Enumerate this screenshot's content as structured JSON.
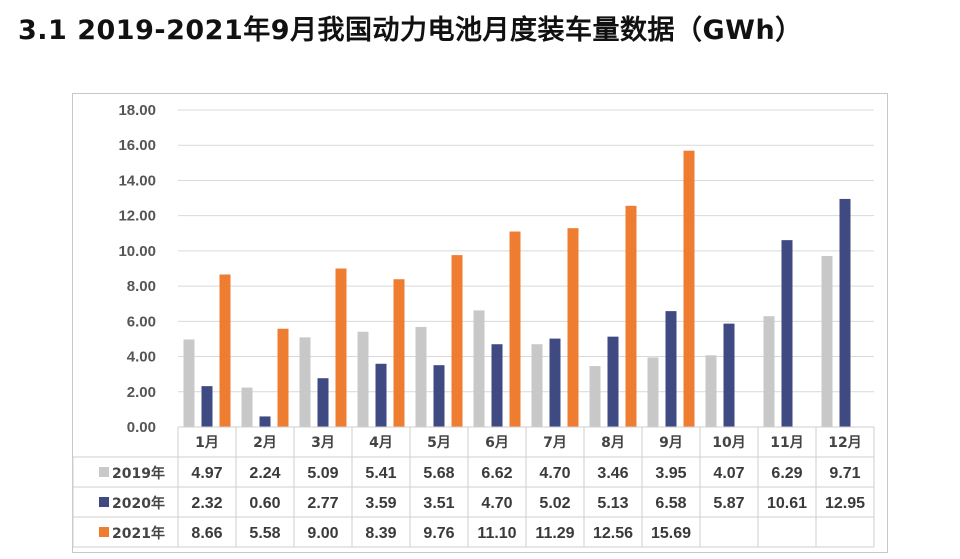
{
  "title": "3.1 2019-2021年9月我国动力电池月度装车量数据（GWh）",
  "chart_data": {
    "type": "bar",
    "categories": [
      "1月",
      "2月",
      "3月",
      "4月",
      "5月",
      "6月",
      "7月",
      "8月",
      "9月",
      "10月",
      "11月",
      "12月"
    ],
    "series": [
      {
        "name": "2019年",
        "color": "#c8c8c8",
        "values": [
          4.97,
          2.24,
          5.09,
          5.41,
          5.68,
          6.62,
          4.7,
          3.46,
          3.95,
          4.07,
          6.29,
          9.71
        ]
      },
      {
        "name": "2020年",
        "color": "#3f4a82",
        "values": [
          2.32,
          0.6,
          2.77,
          3.59,
          3.51,
          4.7,
          5.02,
          5.13,
          6.58,
          5.87,
          10.61,
          12.95
        ]
      },
      {
        "name": "2021年",
        "color": "#ee7d31",
        "values": [
          8.66,
          5.58,
          9.0,
          8.39,
          9.76,
          11.1,
          11.29,
          12.56,
          15.69,
          null,
          null,
          null
        ]
      }
    ],
    "yticks": [
      "0.00",
      "2.00",
      "4.00",
      "6.00",
      "8.00",
      "10.00",
      "12.00",
      "14.00",
      "16.00",
      "18.00"
    ],
    "ylim": [
      0,
      18
    ],
    "grid": true,
    "legend": "data-table"
  }
}
